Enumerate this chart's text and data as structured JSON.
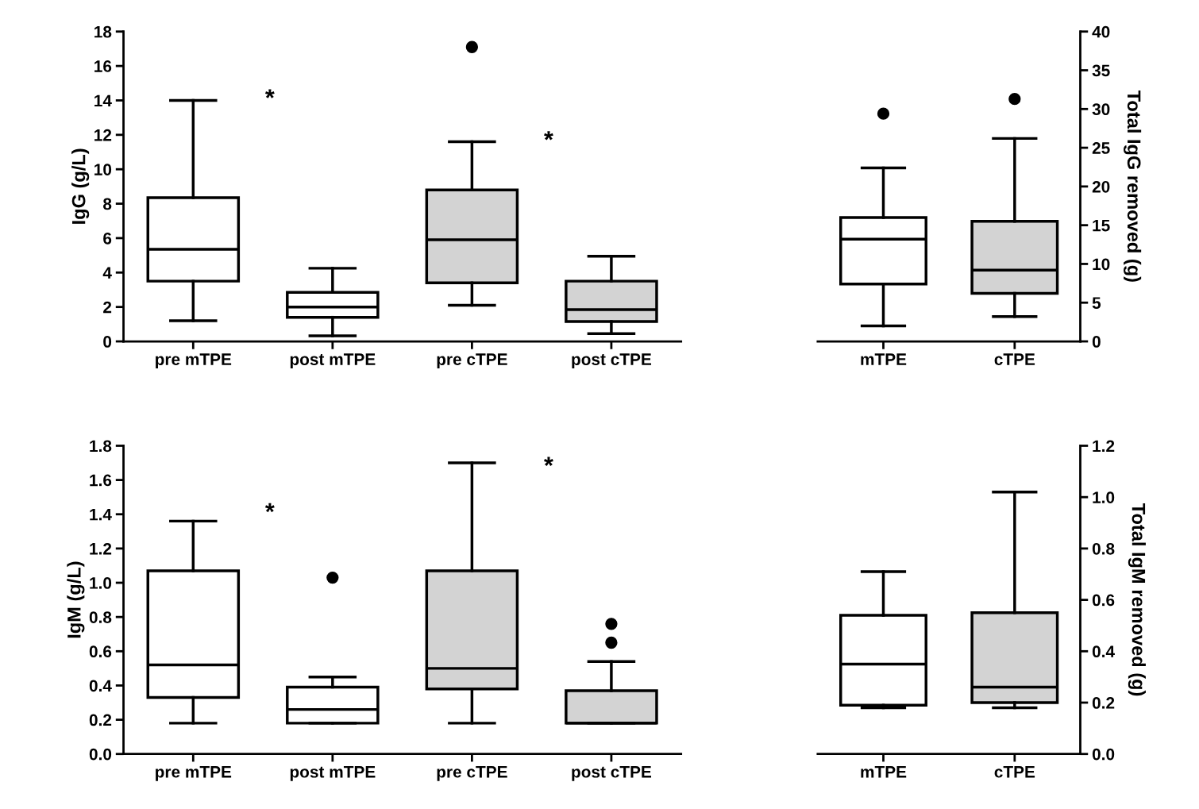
{
  "chart_data": [
    {
      "type": "box",
      "categories": [
        "pre mTPE",
        "post mTPE",
        "pre cTPE",
        "post cTPE"
      ],
      "ylabel": "IgG (g/L)",
      "ylim": [
        0,
        18
      ],
      "yticks": [
        0,
        2,
        4,
        6,
        8,
        10,
        12,
        14,
        16,
        18
      ],
      "colors": [
        "#ffffff",
        "#ffffff",
        "#d3d3d3",
        "#d3d3d3"
      ],
      "boxes": [
        {
          "low": 1.2,
          "q1": 3.5,
          "median": 5.35,
          "q3": 8.35,
          "high": 14.0
        },
        {
          "low": 0.32,
          "q1": 1.4,
          "median": 2.0,
          "q3": 2.85,
          "high": 4.25
        },
        {
          "low": 2.1,
          "q1": 3.4,
          "median": 5.9,
          "q3": 8.8,
          "high": 11.6,
          "outliers": [
            17.1
          ]
        },
        {
          "low": 0.45,
          "q1": 1.15,
          "median": 1.85,
          "q3": 3.5,
          "high": 4.95
        }
      ],
      "annotations": [
        "*",
        "*"
      ]
    },
    {
      "type": "box",
      "categories": [
        "mTPE",
        "cTPE"
      ],
      "y2label": "Total IgG removed (g)",
      "y2lim": [
        0,
        40
      ],
      "y2ticks": [
        0,
        5,
        10,
        15,
        20,
        25,
        30,
        35,
        40
      ],
      "series": [
        {
          "axis": "y2",
          "colors": [
            "#ffffff",
            "#d3d3d3"
          ],
          "boxes": [
            {
              "low": 2.0,
              "q1": 7.4,
              "median": 13.2,
              "q3": 16.0,
              "high": 22.4,
              "outliers": [
                29.4
              ]
            },
            {
              "low": 3.2,
              "q1": 6.2,
              "median": 9.2,
              "q3": 15.5,
              "high": 26.2,
              "outliers": [
                31.3
              ]
            }
          ]
        }
      ]
    },
    {
      "type": "box",
      "categories": [
        "pre mTPE",
        "post mTPE",
        "pre cTPE",
        "post cTPE"
      ],
      "ylabel": "IgM (g/L)",
      "ylim": [
        0,
        1.8
      ],
      "yticks": [
        {
          "value": 0,
          "label": "0.0"
        },
        0.2,
        0.4,
        0.6,
        0.8,
        {
          "value": 1,
          "label": "1.0"
        },
        1.2,
        1.4,
        1.6,
        1.8
      ],
      "colors": [
        "#ffffff",
        "#ffffff",
        "#d3d3d3",
        "#d3d3d3"
      ],
      "boxes": [
        {
          "low": 0.18,
          "q1": 0.33,
          "median": 0.52,
          "q3": 1.07,
          "high": 1.36
        },
        {
          "low": 0.18,
          "q1": 0.18,
          "median": 0.26,
          "q3": 0.39,
          "high": 0.45,
          "outliers": [
            1.03
          ]
        },
        {
          "low": 0.18,
          "q1": 0.38,
          "median": 0.5,
          "q3": 1.07,
          "high": 1.7
        },
        {
          "low": 0.18,
          "q1": 0.18,
          "median": 0.18,
          "q3": 0.37,
          "high": 0.54,
          "outliers": [
            0.76,
            0.65
          ]
        }
      ],
      "annotations": [
        "*",
        "*"
      ]
    },
    {
      "type": "box",
      "categories": [
        "mTPE",
        "cTPE"
      ],
      "y2label": "Total IgM removed (g)",
      "y2lim": [
        0,
        1.2
      ],
      "y2ticks": [
        {
          "value": 0,
          "label": "0.0"
        },
        0.2,
        0.4,
        0.6,
        0.8,
        {
          "value": 1,
          "label": "1.0"
        },
        1.2
      ],
      "series": [
        {
          "axis": "y2",
          "colors": [
            "#ffffff",
            "#d3d3d3"
          ],
          "boxes": [
            {
              "low": 0.18,
              "q1": 0.19,
              "median": 0.35,
              "q3": 0.54,
              "high": 0.71
            },
            {
              "low": 0.18,
              "q1": 0.2,
              "median": 0.26,
              "q3": 0.55,
              "high": 1.02
            }
          ]
        }
      ]
    }
  ]
}
